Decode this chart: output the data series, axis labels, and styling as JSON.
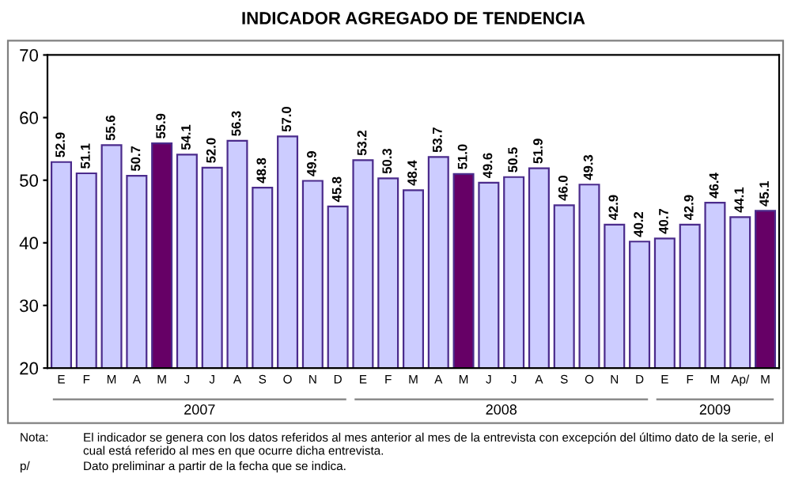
{
  "chart_data": {
    "type": "bar",
    "title": "INDICADOR AGREGADO DE TENDENCIA",
    "categories": [
      "E",
      "F",
      "M",
      "A",
      "M",
      "J",
      "J",
      "A",
      "S",
      "O",
      "N",
      "D",
      "E",
      "F",
      "M",
      "A",
      "M",
      "J",
      "J",
      "A",
      "S",
      "O",
      "N",
      "D",
      "E",
      "F",
      "M",
      "Ap/",
      "M"
    ],
    "values": [
      52.9,
      51.1,
      55.6,
      50.7,
      55.9,
      54.1,
      52.0,
      56.3,
      48.8,
      57.0,
      49.9,
      45.8,
      53.2,
      50.3,
      48.4,
      53.7,
      51.0,
      49.6,
      50.5,
      51.9,
      46.0,
      49.3,
      42.9,
      40.2,
      40.7,
      42.9,
      46.4,
      44.1,
      45.1
    ],
    "colors": [
      "#ccccff",
      "#ccccff",
      "#ccccff",
      "#ccccff",
      "#660066",
      "#ccccff",
      "#ccccff",
      "#ccccff",
      "#ccccff",
      "#ccccff",
      "#ccccff",
      "#ccccff",
      "#ccccff",
      "#ccccff",
      "#ccccff",
      "#ccccff",
      "#660066",
      "#ccccff",
      "#ccccff",
      "#ccccff",
      "#ccccff",
      "#ccccff",
      "#ccccff",
      "#ccccff",
      "#ccccff",
      "#ccccff",
      "#ccccff",
      "#ccccff",
      "#660066"
    ],
    "value_labels": [
      "52.9",
      "51.1",
      "55.6",
      "50.7",
      "55.9",
      "54.1",
      "52.0",
      "56.3",
      "48.8",
      "57.0",
      "49.9",
      "45.8",
      "53.2",
      "50.3",
      "48.4",
      "53.7",
      "51.0",
      "49.6",
      "50.5",
      "51.9",
      "46.0",
      "49.3",
      "42.9",
      "40.2",
      "40.7",
      "42.9",
      "46.4",
      "44.1",
      "45.1"
    ],
    "ylim": [
      20,
      70
    ],
    "yticks": [
      20,
      30,
      40,
      50,
      60,
      70
    ],
    "grid": false,
    "annotations": [
      "2007",
      "2008",
      "2009",
      "Nota:",
      "El indicador se genera con los datos referidos al mes anterior al mes de la entrevista con excepción del último dato de la serie, el cual está referido al mes en que ocurre dicha entrevista.",
      "p/",
      "Dato preliminar a partir de la fecha que se indica."
    ]
  }
}
